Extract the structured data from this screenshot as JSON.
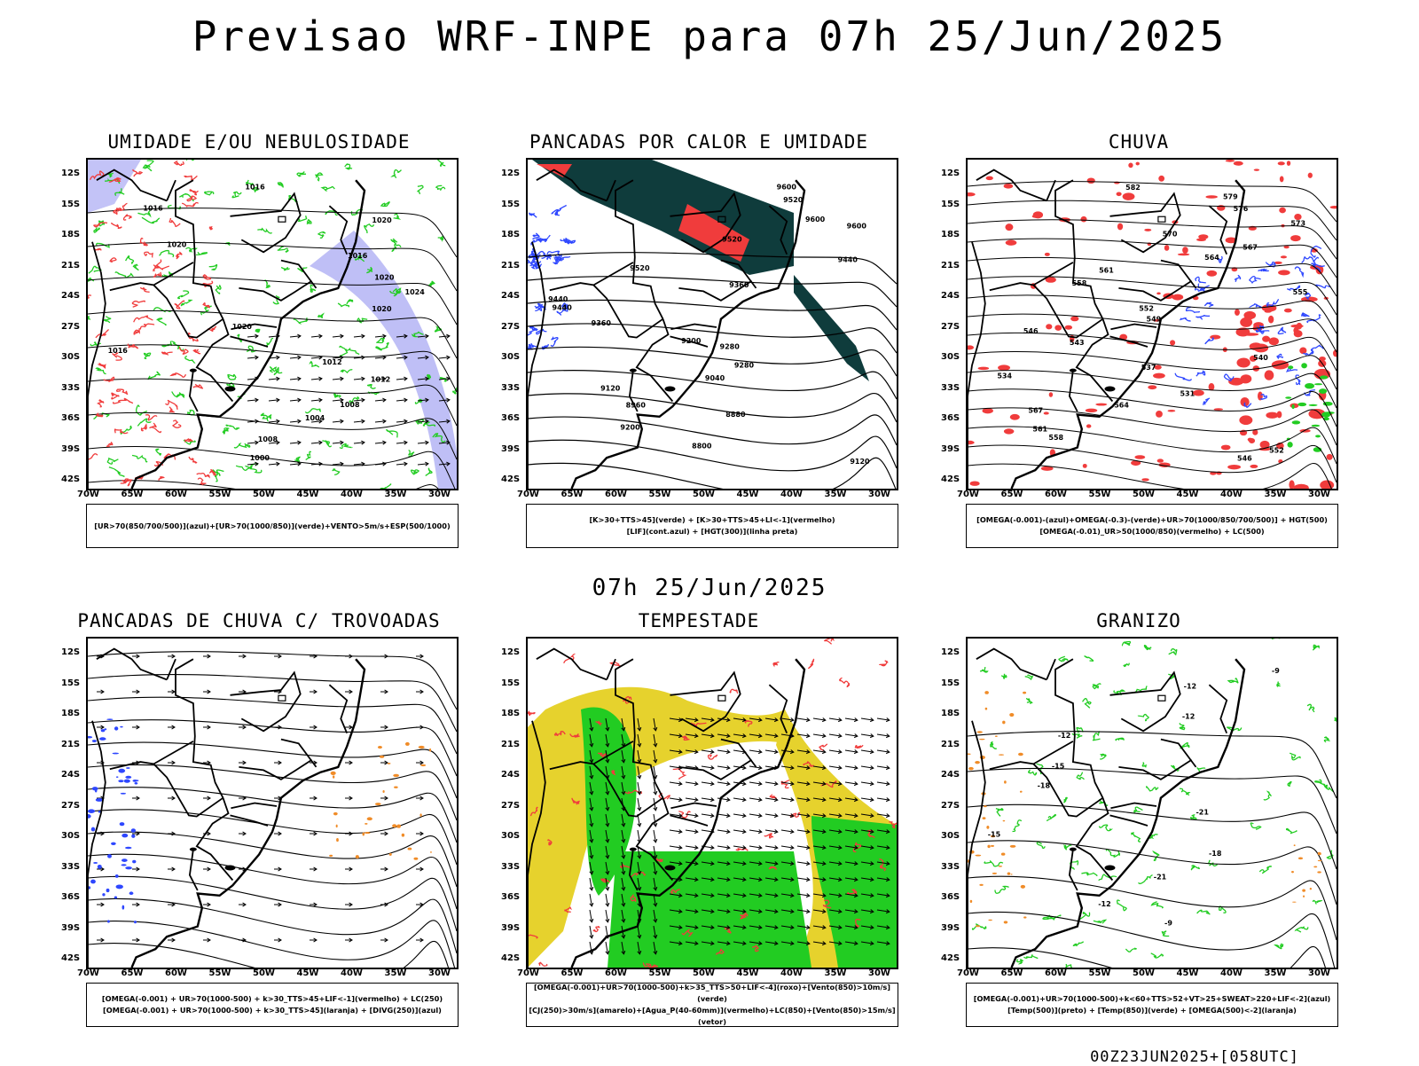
{
  "header": {
    "title": "Previsao WRF-INPE  para 07h 25/Jun/2025"
  },
  "middle": {
    "title": "07h 25/Jun/2025"
  },
  "footer": {
    "run": "00Z23JUN2025+[058UTC]"
  },
  "axes": {
    "lat_labels": [
      "12S",
      "15S",
      "18S",
      "21S",
      "24S",
      "27S",
      "30S",
      "33S",
      "36S",
      "39S",
      "42S"
    ],
    "lon_labels": [
      "70W",
      "65W",
      "60W",
      "55W",
      "50W",
      "45W",
      "40W",
      "35W",
      "30W"
    ]
  },
  "colors": {
    "blue": "#2e47ff",
    "green": "#22cc22",
    "red": "#f03c3c",
    "lavender": "#b4b4f5",
    "darkteal": "#0f3c3c",
    "yellow": "#e6d22d",
    "orange": "#f08c28",
    "black": "#000000"
  },
  "panels": [
    {
      "title": "UMIDADE E/OU NEBULOSIDADE",
      "legend": [
        "[UR>70(850/700/500)](azul)+[UR>70(1000/850)](verde)+VENTO>5m/s+ESP(500/1000)"
      ],
      "contour_labels": [
        "1016",
        "1016",
        "1020",
        "1020",
        "1016",
        "1020",
        "1024",
        "1020",
        "1020",
        "1016",
        "1012",
        "1012",
        "1008",
        "1004",
        "1008",
        "1000"
      ]
    },
    {
      "title": "PANCADAS POR CALOR E UMIDADE",
      "legend": [
        "[K>30+TTS>45](verde) + [K>30+TTS>45+LI<-1](vermelho)",
        "[LIF](cont.azul) + [HGT(300)](linha preta)"
      ],
      "contour_labels": [
        "9600",
        "9520",
        "9600",
        "9600",
        "9520",
        "9440",
        "9520",
        "9360",
        "9440",
        "9440",
        "9360",
        "9200",
        "9280",
        "9280",
        "9040",
        "9120",
        "8960",
        "8880",
        "9200",
        "8800",
        "9120"
      ]
    },
    {
      "title": "CHUVA",
      "legend": [
        "[OMEGA(-0.001)-(azul)+OMEGA(-0.3)-(verde)+UR>70(1000/850/700/500)] + HGT(500)",
        "[OMEGA(-0.01)_UR>50(1000/850)(vermelho) + LC(500)"
      ],
      "contour_labels": [
        "582",
        "579",
        "576",
        "573",
        "570",
        "567",
        "564",
        "561",
        "558",
        "555",
        "552",
        "549",
        "546",
        "543",
        "540",
        "537",
        "534",
        "531",
        "564",
        "567",
        "561",
        "558",
        "552",
        "546"
      ]
    },
    {
      "title": "PANCADAS DE CHUVA C/ TROVOADAS",
      "legend": [
        "[OMEGA(-0.001) + UR>70(1000-500) + k>30_TTS>45+LIF<-1](vermelho) + LC(250)",
        "[OMEGA(-0.001) + UR>70(1000-500) + k>30_TTS>45](laranja) + [DIVG(250)](azul)"
      ],
      "contour_labels": []
    },
    {
      "title": "TEMPESTADE",
      "legend": [
        "[OMEGA(-0.001)+UR>70(1000-500)+k>35_TTS>50+LIF<-4](roxo)+[Vento(850)>10m/s](verde)",
        "[CJ(250)>30m/s](amarelo)+[Agua_P(40-60mm)](vermelho)+LC(850)+[Vento(850)>15m/s](vetor)"
      ],
      "contour_labels": []
    },
    {
      "title": "GRANIZO",
      "legend": [
        "[OMEGA(-0.001)+UR>70(1000-500)+k<60+TTS>52+VT>25+SWEAT>220+LIF<-2](azul)",
        "[Temp(500)](preto) + [Temp(850)](verde) + [OMEGA(500)<-2](laranja)"
      ],
      "contour_labels": [
        "-9",
        "-12",
        "-12",
        "-12",
        "-15",
        "-18",
        "-21",
        "-15",
        "-18",
        "-21",
        "-12",
        "-9"
      ]
    }
  ]
}
